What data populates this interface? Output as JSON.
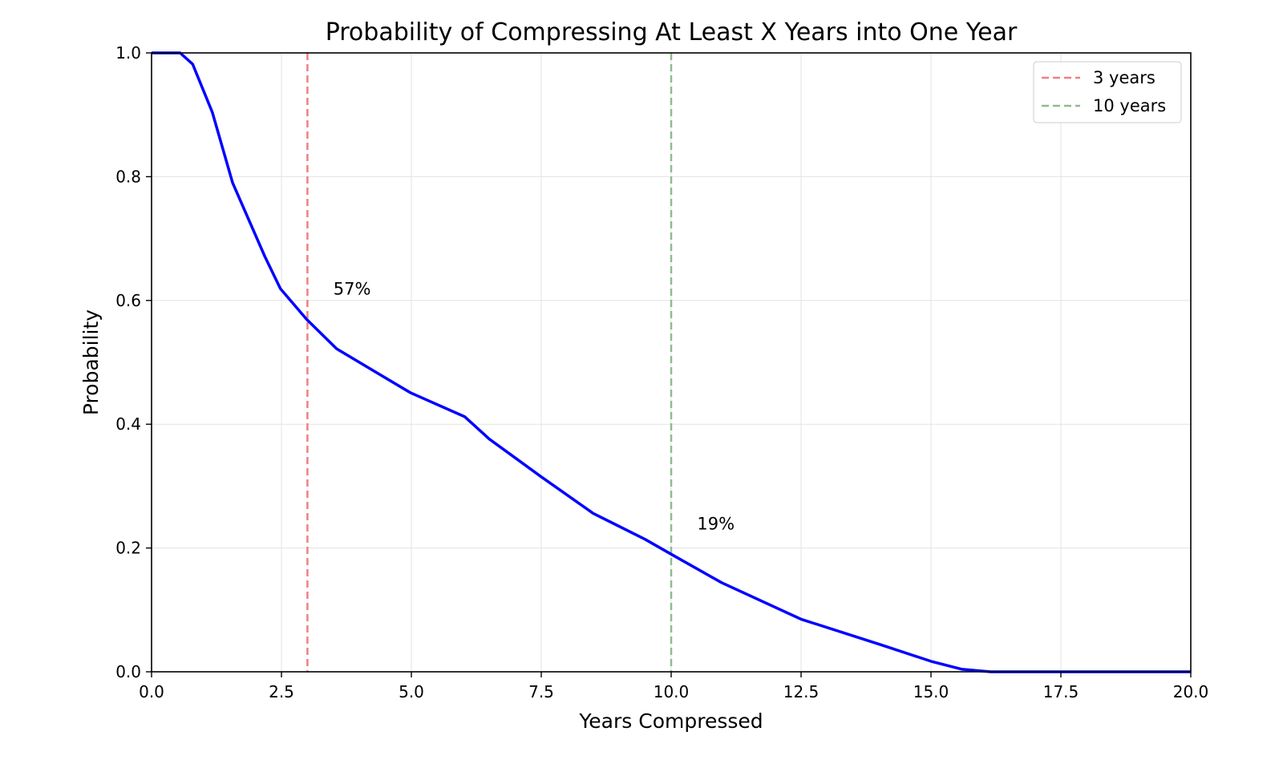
{
  "chart_data": {
    "type": "line",
    "title": "Probability of Compressing At Least X Years into One Year",
    "xlabel": "Years Compressed",
    "ylabel": "Probability",
    "xlim": [
      0,
      20
    ],
    "ylim": [
      0,
      1
    ],
    "grid": true,
    "legend_placement": "top-right",
    "xticks": [
      0,
      2.5,
      5,
      7.5,
      10,
      12.5,
      15,
      17.5,
      20
    ],
    "xtick_labels": [
      "0.0",
      "2.5",
      "5.0",
      "7.5",
      "10.0",
      "12.5",
      "15.0",
      "17.5",
      "20.0"
    ],
    "yticks": [
      0,
      0.2,
      0.4,
      0.6,
      0.8,
      1.0
    ],
    "ytick_labels": [
      "0.0",
      "0.2",
      "0.4",
      "0.6",
      "0.8",
      "1.0"
    ],
    "series": [
      {
        "color": "#0000ff",
        "x": [
          0,
          0.55,
          0.79,
          1.17,
          1.56,
          2.18,
          2.48,
          2.98,
          3.56,
          4.34,
          4.98,
          6.03,
          6.5,
          7.5,
          8.5,
          9.5,
          10.0,
          10.97,
          12.5,
          14.06,
          15.0,
          15.6,
          16.15,
          20
        ],
        "y": [
          1.0,
          1.0,
          0.982,
          0.904,
          0.79,
          0.671,
          0.619,
          0.57,
          0.522,
          0.483,
          0.451,
          0.412,
          0.376,
          0.315,
          0.256,
          0.214,
          0.19,
          0.144,
          0.085,
          0.043,
          0.017,
          0.004,
          0.0,
          0.0
        ]
      }
    ],
    "vlines": [
      {
        "x": 3,
        "name": "3 years",
        "color": "#f08080"
      },
      {
        "x": 10,
        "name": "10 years",
        "color": "#8fbc8f"
      }
    ],
    "annotations": [
      {
        "text": "57%",
        "x": 3.5,
        "y": 0.62
      },
      {
        "text": "19%",
        "x": 10.5,
        "y": 0.24
      }
    ]
  }
}
